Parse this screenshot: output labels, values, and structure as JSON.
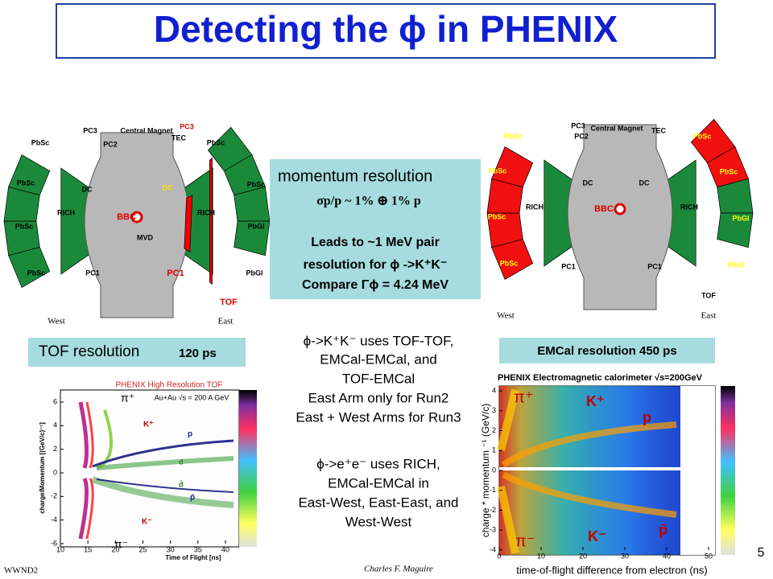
{
  "header": {
    "title": "Detecting the ϕ in PHENIX"
  },
  "left_detector": {
    "labels": [
      "PbSc",
      "PbSc",
      "PbSc",
      "PbSc",
      "PC3",
      "PC2",
      "Central Magnet",
      "PC3",
      "TEC",
      "PbSc",
      "PbSc",
      "DC",
      "DC",
      "RICH",
      "RICH",
      "BBC",
      "MVD",
      "PC1",
      "PC1",
      "PbGl",
      "PbGl",
      "TOF",
      "West",
      "East"
    ]
  },
  "right_detector": {
    "labels": [
      "PbSc",
      "PbSc",
      "PbSc",
      "PbSc",
      "PC3",
      "TEC",
      "Central Magnet",
      "PC2",
      "PbSc",
      "PbSc",
      "DC",
      "DC",
      "RICH",
      "RICH",
      "BBC",
      "PC1",
      "PC1",
      "PbGl",
      "PbGl",
      "TOF",
      "West",
      "East"
    ]
  },
  "momentum_box": {
    "heading": "momentum resolution",
    "formula": "σp/p ~  1% ⊕ 1% p",
    "line1": "Leads to ~1 MeV pair",
    "line2": "resolution for ϕ ->K⁺K⁻",
    "line3": "Compare Γϕ = 4.24 MeV"
  },
  "tof_box": {
    "text": "TOF resolution",
    "value": "120 ps"
  },
  "emcal_box": {
    "text": "EMCal resolution 450 ps"
  },
  "middle_text": [
    "ϕ->K⁺K⁻ uses TOF-TOF,",
    "EMCal-EMCal, and",
    "TOF-EMCal",
    "East Arm only for Run2",
    "East + West Arms for Run3",
    "ϕ->e⁺e⁻ uses RICH,",
    "EMCal-EMCal in",
    "East-West, East-East, and",
    "West-West"
  ],
  "tof_plot": {
    "title": "PHENIX High Resolution TOF",
    "subtitle": "Au+Au √s = 200 A GeV",
    "y_label": "charge/Momentum [(GeV/c)⁻¹]",
    "x_label": "Time of Flight [ns]",
    "yticks": [
      "6",
      "4",
      "2",
      "0",
      "-2",
      "-4",
      "-6"
    ],
    "xticks": [
      "10",
      "15",
      "20",
      "25",
      "30",
      "35",
      "40"
    ],
    "particles": [
      "π⁺",
      "K⁺",
      "p",
      "d",
      "d̄",
      "p̄",
      "K⁻",
      "π⁻"
    ]
  },
  "emcal_plot": {
    "title": "PHENIX Electromagnetic calorimeter √s=200GeV",
    "y_label": "charge * momentum ⁻¹ (GeV/c)",
    "x_label": "time-of-flight difference from electron (ns)",
    "yticks": [
      "4",
      "3",
      "2",
      "1",
      "0",
      "-1",
      "-2",
      "-3",
      "-4"
    ],
    "xticks": [
      "0",
      "10",
      "20",
      "30",
      "40",
      "50"
    ],
    "particles": [
      "π⁺",
      "K⁺",
      "p",
      "π⁻",
      "K⁻",
      "p̄"
    ]
  },
  "footer": {
    "left": "WWND2",
    "author": "Charles F. Maguire",
    "page": "5"
  }
}
